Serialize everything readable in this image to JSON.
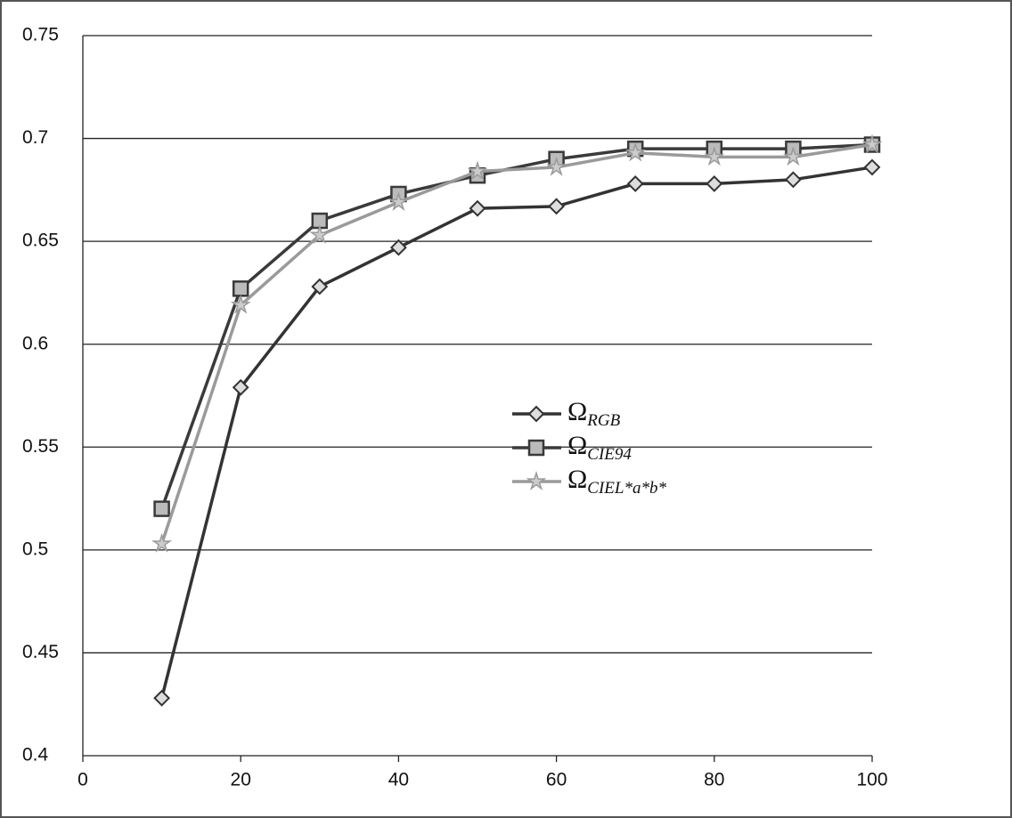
{
  "chart_data": {
    "type": "line",
    "x": [
      10,
      20,
      30,
      40,
      50,
      60,
      70,
      80,
      90,
      100
    ],
    "series": [
      {
        "name": "Ω",
        "name_sub": "RGB",
        "color": "#333333",
        "marker": "diamond",
        "values": [
          0.428,
          0.579,
          0.628,
          0.647,
          0.666,
          0.667,
          0.678,
          0.678,
          0.68,
          0.686
        ]
      },
      {
        "name": "Ω",
        "name_sub": "CIE94",
        "color": "#3a3a3a",
        "marker": "square",
        "values": [
          0.52,
          0.627,
          0.66,
          0.673,
          0.682,
          0.69,
          0.695,
          0.695,
          0.695,
          0.697
        ]
      },
      {
        "name": "Ω",
        "name_sub": "CIEL*a*b*",
        "color": "#9a9a9a",
        "marker": "star",
        "values": [
          0.503,
          0.619,
          0.653,
          0.669,
          0.684,
          0.686,
          0.693,
          0.691,
          0.691,
          0.697
        ]
      }
    ],
    "xlim": [
      0,
      100
    ],
    "xticks": [
      0,
      20,
      40,
      60,
      80,
      100
    ],
    "ylim": [
      0.4,
      0.75
    ],
    "yticks": [
      0.4,
      0.45,
      0.5,
      0.55,
      0.6,
      0.65,
      0.7,
      0.75
    ],
    "grid": true,
    "legend": "center"
  }
}
